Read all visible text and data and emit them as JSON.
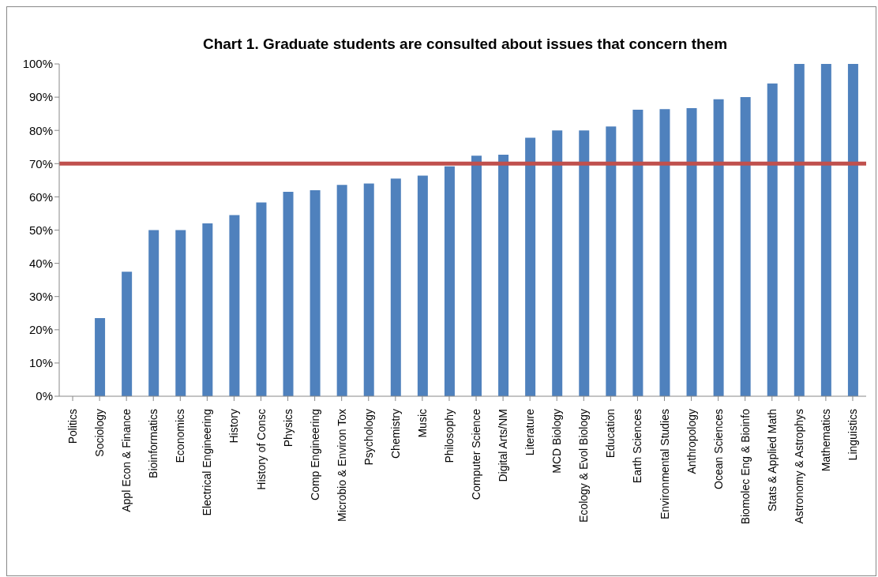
{
  "chart_data": {
    "type": "bar",
    "title": "Chart 1. Graduate students are consulted about issues that concern them",
    "categories": [
      "Politics",
      "Sociology",
      "Appl Econ & Finance",
      "Bioinformatics",
      "Economics",
      "Electrical Engineering",
      "History",
      "History of Consc",
      "Physics",
      "Comp Engineering",
      "Microbio & Environ Tox",
      "Psychology",
      "Chemistry",
      "Music",
      "Philosophy",
      "Computer Science",
      "Digital Arts/NM",
      "Literature",
      "MCD Biology",
      "Ecology & Evol Biology",
      "Education",
      "Earth Sciences",
      "Environmental Studies",
      "Anthropology",
      "Ocean Sciences",
      "Biomolec Eng & Bioinfo",
      "Stats & Applied Math",
      "Astronomy & Astrophys",
      "Mathematics",
      "Linguistics"
    ],
    "values": [
      0,
      23.5,
      37.5,
      50,
      50,
      52,
      54.5,
      58.3,
      61.5,
      62,
      63.6,
      64,
      65.5,
      66.4,
      69.2,
      72.4,
      72.7,
      77.8,
      80,
      80,
      81.2,
      86.2,
      86.4,
      86.7,
      89.4,
      90,
      94.1,
      100,
      100,
      100
    ],
    "color": "#4f81bd",
    "ylim": [
      0,
      100
    ],
    "yticks": [
      {
        "value": 0,
        "label": "0%"
      },
      {
        "value": 10,
        "label": "10%"
      },
      {
        "value": 20,
        "label": "20%"
      },
      {
        "value": 30,
        "label": "30%"
      },
      {
        "value": 40,
        "label": "40%"
      },
      {
        "value": 50,
        "label": "50%"
      },
      {
        "value": 60,
        "label": "60%"
      },
      {
        "value": 70,
        "label": "70%"
      },
      {
        "value": 80,
        "label": "80%"
      },
      {
        "value": 90,
        "label": "90%"
      },
      {
        "value": 100,
        "label": "100%"
      }
    ],
    "ref_lines": [
      {
        "axis": "y",
        "value": 70,
        "color": "#c0504d"
      }
    ],
    "grid": false,
    "legend": false
  }
}
